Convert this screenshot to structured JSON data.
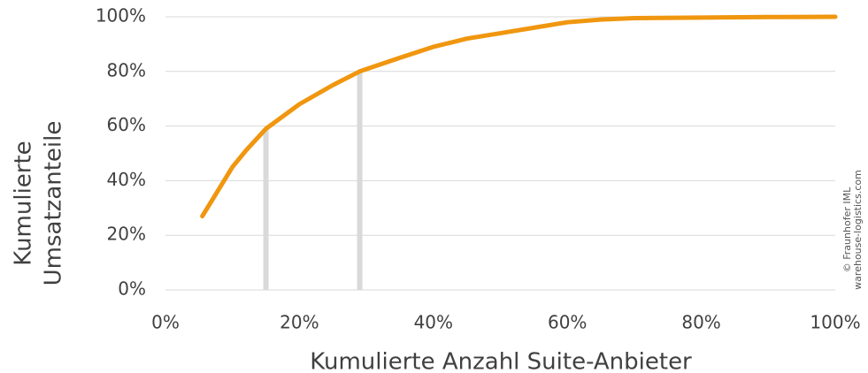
{
  "chart_data": {
    "type": "line",
    "y_title_lines": [
      "Kumulierte",
      "Umsatzanteile"
    ],
    "x_title": "Kumulierte Anzahl Suite-Anbieter",
    "credit_lines": [
      "© Fraunhofer IML",
      "warehouse-logistics.com"
    ],
    "x": [
      5.5,
      8,
      10,
      12,
      15,
      20,
      25,
      29,
      35,
      40,
      45,
      50,
      55,
      60,
      65,
      70,
      80,
      90,
      100
    ],
    "series": [
      {
        "color": "#f0960f",
        "values": [
          27,
          37,
          45,
          51,
          59,
          68,
          75,
          80,
          85,
          89,
          92,
          94,
          96,
          98,
          99,
          99.5,
          99.7,
          99.9,
          100
        ]
      }
    ],
    "markers": [
      {
        "x": 15,
        "y": 59
      },
      {
        "x": 29,
        "y": 80
      }
    ],
    "marker_color": "#d9d9d9",
    "xlim": [
      0,
      100
    ],
    "ylim": [
      0,
      100
    ],
    "xticks": [
      {
        "value": 0,
        "label": "0%"
      },
      {
        "value": 20,
        "label": "20%"
      },
      {
        "value": 40,
        "label": "40%"
      },
      {
        "value": 60,
        "label": "60%"
      },
      {
        "value": 80,
        "label": "80%"
      },
      {
        "value": 100,
        "label": "100%"
      }
    ],
    "yticks": [
      {
        "value": 0,
        "label": "0%"
      },
      {
        "value": 20,
        "label": "20%"
      },
      {
        "value": 40,
        "label": "40%"
      },
      {
        "value": 60,
        "label": "60%"
      },
      {
        "value": 80,
        "label": "80%"
      },
      {
        "value": 100,
        "label": "100%"
      }
    ],
    "grid": true
  }
}
